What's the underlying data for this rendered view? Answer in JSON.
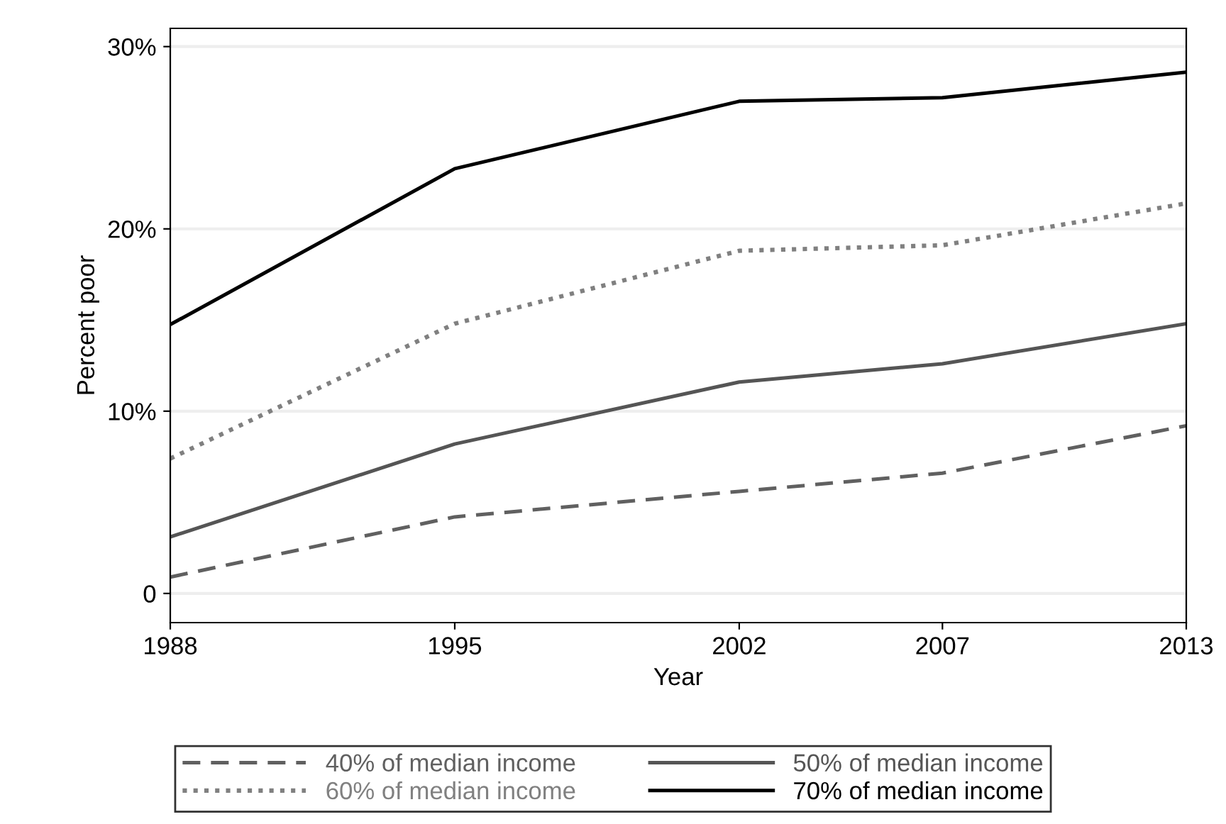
{
  "chart_data": {
    "type": "line",
    "xlabel": "Year",
    "ylabel": "Percent poor",
    "x": [
      1988,
      1995,
      2002,
      2007,
      2013
    ],
    "xlim": [
      1988,
      2013
    ],
    "xticks": [
      1988,
      1995,
      2002,
      2007,
      2013
    ],
    "ylim": [
      -1.6,
      31
    ],
    "yticks": [
      {
        "value": 0,
        "label": "0"
      },
      {
        "value": 10,
        "label": "10%"
      },
      {
        "value": 20,
        "label": "20%"
      },
      {
        "value": 30,
        "label": "30%"
      }
    ],
    "grid": "y",
    "legend": "bottom",
    "marker": "none",
    "series": [
      {
        "name": "40% of median income",
        "color": "#606060",
        "line_style": "dashed",
        "values": [
          0.9,
          4.2,
          5.6,
          6.6,
          9.2
        ]
      },
      {
        "name": "50% of median income",
        "color": "#555555",
        "line_style": "solid",
        "values": [
          3.1,
          8.2,
          11.6,
          12.6,
          14.8
        ]
      },
      {
        "name": "60% of median income",
        "color": "#808080",
        "line_style": "dotted",
        "values": [
          7.4,
          14.8,
          18.8,
          19.1,
          21.4
        ]
      },
      {
        "name": "70% of median income",
        "color": "#000000",
        "line_style": "solid",
        "values": [
          14.75,
          23.3,
          27.0,
          27.2,
          28.6
        ]
      }
    ]
  }
}
